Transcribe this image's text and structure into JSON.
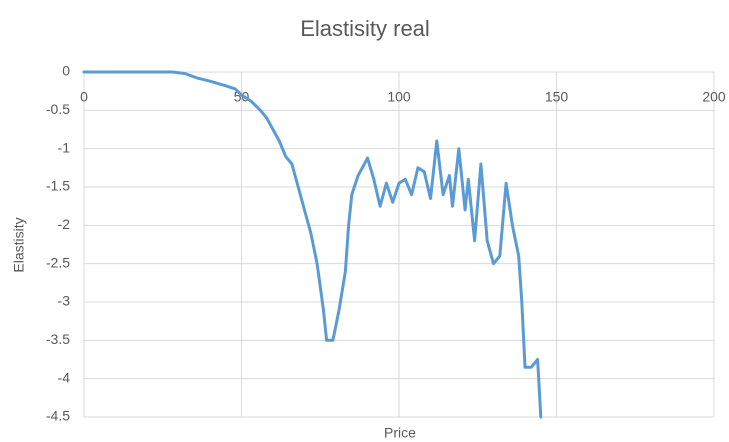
{
  "chart_data": {
    "type": "line",
    "title": "Elastisity real",
    "x_label": "Price",
    "y_label": "Elastisity",
    "xlim": [
      0,
      200
    ],
    "xticks": [
      0,
      50,
      100,
      150,
      200
    ],
    "ylim": [
      -4.5,
      0
    ],
    "yticks": [
      0,
      -0.5,
      -1,
      -1.5,
      -2,
      -2.5,
      -3,
      -3.5,
      -4,
      -4.5
    ],
    "grid": true,
    "series": [
      {
        "name": "Elastisity",
        "color": "#5b9bd5",
        "x": [
          0,
          10,
          20,
          28,
          32,
          36,
          40,
          45,
          48,
          50,
          53,
          56,
          58,
          60,
          62,
          64,
          66,
          68,
          70,
          72,
          74,
          76,
          77,
          79,
          81,
          83,
          84,
          85,
          87,
          89,
          90,
          92,
          94,
          96,
          98,
          100,
          102,
          104,
          106,
          108,
          110,
          112,
          114,
          116,
          117,
          119,
          121,
          122,
          124,
          126,
          128,
          130,
          132,
          134,
          136,
          138,
          139,
          140,
          142,
          144,
          145
        ],
        "values": [
          0,
          0,
          0,
          0,
          -0.02,
          -0.08,
          -0.12,
          -0.18,
          -0.22,
          -0.3,
          -0.38,
          -0.5,
          -0.6,
          -0.75,
          -0.9,
          -1.1,
          -1.2,
          -1.5,
          -1.8,
          -2.1,
          -2.5,
          -3.1,
          -3.5,
          -3.5,
          -3.1,
          -2.6,
          -2.0,
          -1.6,
          -1.35,
          -1.2,
          -1.12,
          -1.4,
          -1.75,
          -1.45,
          -1.7,
          -1.45,
          -1.4,
          -1.6,
          -1.25,
          -1.3,
          -1.65,
          -0.9,
          -1.6,
          -1.35,
          -1.75,
          -1.0,
          -1.8,
          -1.4,
          -2.2,
          -1.2,
          -2.2,
          -2.5,
          -2.4,
          -1.45,
          -2.0,
          -2.4,
          -3.0,
          -3.85,
          -3.85,
          -3.75,
          -4.5
        ]
      }
    ]
  }
}
